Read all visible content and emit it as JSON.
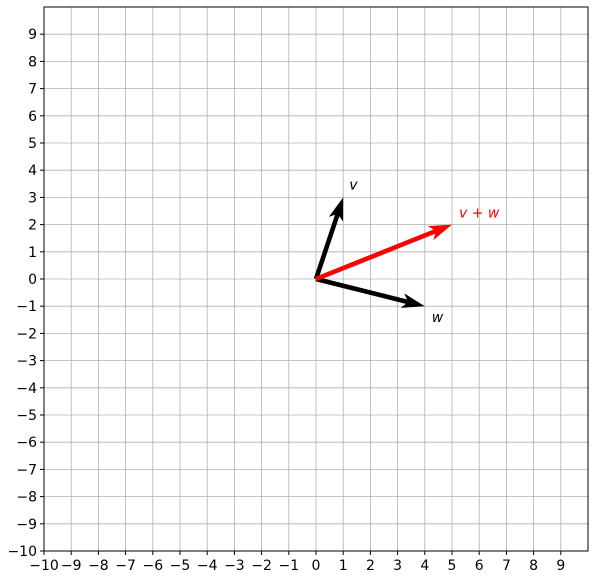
{
  "chart_data": {
    "type": "vector",
    "title": "",
    "xlabel": "",
    "ylabel": "",
    "xlim": [
      -10,
      10
    ],
    "ylim": [
      -10,
      10
    ],
    "grid": true,
    "xticks": [
      -10,
      -9,
      -8,
      -7,
      -6,
      -5,
      -4,
      -3,
      -2,
      -1,
      0,
      1,
      2,
      3,
      4,
      5,
      6,
      7,
      8,
      9
    ],
    "yticks": [
      -10,
      -9,
      -8,
      -7,
      -6,
      -5,
      -4,
      -3,
      -2,
      -1,
      0,
      1,
      2,
      3,
      4,
      5,
      6,
      7,
      8,
      9
    ],
    "xtick_labels": [
      "−10",
      "−9",
      "−8",
      "−7",
      "−6",
      "−5",
      "−4",
      "−3",
      "−2",
      "−1",
      "0",
      "1",
      "2",
      "3",
      "4",
      "5",
      "6",
      "7",
      "8",
      "9"
    ],
    "ytick_labels": [
      "−10",
      "−9",
      "−8",
      "−7",
      "−6",
      "−5",
      "−4",
      "−3",
      "−2",
      "−1",
      "0",
      "1",
      "2",
      "3",
      "4",
      "5",
      "6",
      "7",
      "8",
      "9"
    ],
    "vectors": [
      {
        "label": "v",
        "start": [
          0,
          0
        ],
        "end": [
          1,
          3
        ],
        "color": "#000000"
      },
      {
        "label": "w",
        "start": [
          0,
          0
        ],
        "end": [
          4,
          -1
        ],
        "color": "#000000"
      },
      {
        "label": "v + w",
        "start": [
          0,
          0
        ],
        "end": [
          5,
          2
        ],
        "color": "#ff0000"
      }
    ]
  }
}
